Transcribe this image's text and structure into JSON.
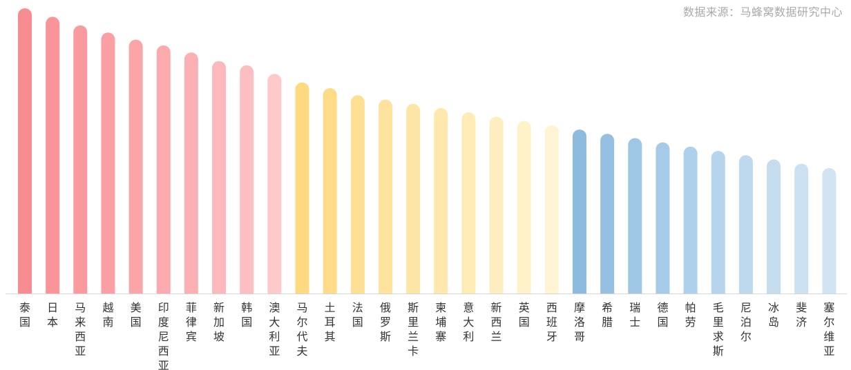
{
  "source_note": "数据来源：马蜂窝数据研究中心",
  "chart_data": {
    "type": "bar",
    "title": "",
    "xlabel": "",
    "ylabel": "",
    "ylim": [
      0,
      100
    ],
    "grid": false,
    "categories": [
      "泰国",
      "日本",
      "马来西亚",
      "越南",
      "美国",
      "印度尼西亚",
      "菲律宾",
      "新加坡",
      "韩国",
      "澳大利亚",
      "马尔代夫",
      "土耳其",
      "法国",
      "俄罗斯",
      "斯里兰卡",
      "柬埔寨",
      "意大利",
      "新西兰",
      "英国",
      "西班牙",
      "摩洛哥",
      "希腊",
      "瑞士",
      "德国",
      "帕劳",
      "毛里求斯",
      "尼泊尔",
      "冰岛",
      "斐济",
      "塞尔维亚"
    ],
    "values": [
      100,
      97,
      94,
      91.5,
      89,
      87,
      84.5,
      81.5,
      80,
      77,
      74,
      72,
      69.5,
      68,
      66.5,
      65,
      63.5,
      62,
      60.5,
      59,
      57.5,
      56,
      54.5,
      53,
      51.5,
      50,
      48.5,
      47,
      45.5,
      44
    ],
    "colors": [
      "#f88d91",
      "#f99599",
      "#f99b9e",
      "#fa9fa3",
      "#faa5a8",
      "#fbaaad",
      "#fbb0b3",
      "#fcb8bb",
      "#fcbfc1",
      "#fdc9cb",
      "#fdd97f",
      "#fddb88",
      "#fde093",
      "#fde39d",
      "#fde5a6",
      "#fee8ae",
      "#feebb6",
      "#feeebf",
      "#fff1c8",
      "#fff4d3",
      "#8cbbdf",
      "#95c0e2",
      "#9ec6e5",
      "#a6cbe8",
      "#afd0ea",
      "#b6d4ec",
      "#bed9ee",
      "#c5dcef",
      "#cbe0f1",
      "#d2e4f3"
    ]
  }
}
